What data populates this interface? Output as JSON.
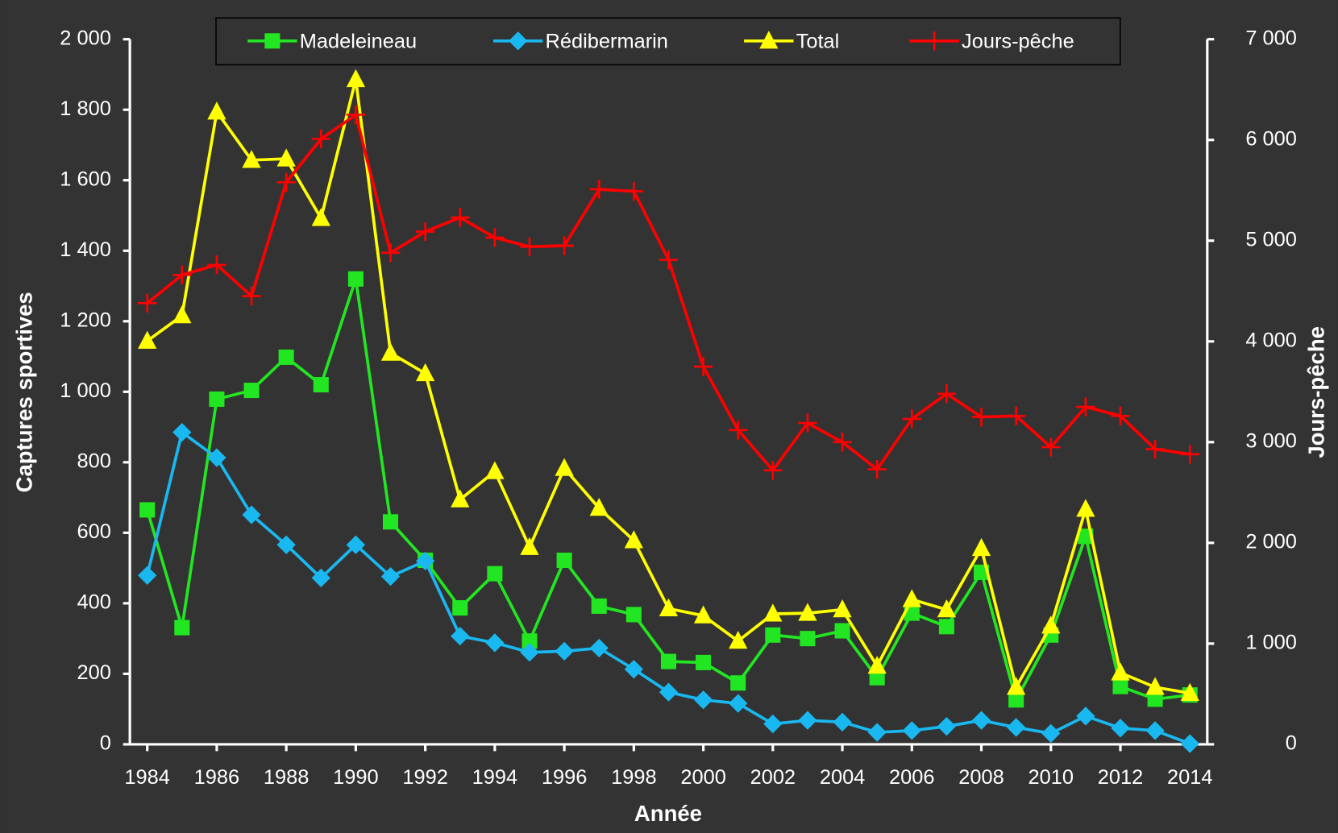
{
  "chart_data": {
    "type": "line",
    "xlabel": "Année",
    "ylabel": "Captures sportives",
    "y2label": "Jours-pêche",
    "x": [
      1984,
      1985,
      1986,
      1987,
      1988,
      1989,
      1990,
      1991,
      1992,
      1993,
      1994,
      1995,
      1996,
      1997,
      1998,
      1999,
      2000,
      2001,
      2002,
      2003,
      2004,
      2005,
      2006,
      2007,
      2008,
      2009,
      2010,
      2011,
      2012,
      2013,
      2014
    ],
    "xlim": [
      1983.5,
      2014.5
    ],
    "xticks": [
      1984,
      1986,
      1988,
      1990,
      1992,
      1994,
      1996,
      1998,
      2000,
      2002,
      2004,
      2006,
      2008,
      2010,
      2012,
      2014
    ],
    "ylim": [
      0,
      2000
    ],
    "yticks": [
      0,
      200,
      400,
      600,
      800,
      {
        "value": 1000,
        "label": "1 000"
      },
      {
        "value": 1200,
        "label": "1 200"
      },
      {
        "value": 1400,
        "label": "1 400"
      },
      {
        "value": 1600,
        "label": "1 600"
      },
      {
        "value": 1800,
        "label": "1 800"
      },
      {
        "value": 2000,
        "label": "2 000"
      }
    ],
    "y2lim": [
      0,
      7000
    ],
    "y2ticks": [
      0,
      {
        "value": 1000,
        "label": "1 000"
      },
      {
        "value": 2000,
        "label": "2 000"
      },
      {
        "value": 3000,
        "label": "3 000"
      },
      {
        "value": 4000,
        "label": "4 000"
      },
      {
        "value": 5000,
        "label": "5 000"
      },
      {
        "value": 6000,
        "label": "6 000"
      },
      {
        "value": 7000,
        "label": "7 000"
      }
    ],
    "legend": "top",
    "series": [
      {
        "name": "Madeleineau",
        "color": "#22e622",
        "marker": "square",
        "values": [
          665,
          331,
          979,
          1004,
          1098,
          1020,
          1320,
          631,
          522,
          387,
          484,
          293,
          522,
          392,
          368,
          235,
          232,
          174,
          310,
          300,
          322,
          189,
          372,
          334,
          488,
          126,
          310,
          590,
          164,
          128,
          140
        ]
      },
      {
        "name": "Rédibermarin",
        "color": "#1ab8f0",
        "marker": "diamond",
        "values": [
          479,
          885,
          813,
          651,
          566,
          472,
          566,
          476,
          520,
          307,
          288,
          261,
          264,
          273,
          213,
          148,
          126,
          116,
          58,
          68,
          63,
          34,
          39,
          51,
          68,
          48,
          31,
          80,
          46,
          39,
          2
        ]
      },
      {
        "name": "Total",
        "color": "#ffff00",
        "marker": "triangle",
        "values": [
          1144,
          1216,
          1794,
          1657,
          1661,
          1492,
          1886,
          1110,
          1052,
          694,
          774,
          559,
          783,
          670,
          578,
          385,
          365,
          293,
          370,
          372,
          382,
          222,
          411,
          382,
          556,
          162,
          336,
          667,
          203,
          162,
          145
        ]
      },
      {
        "name": "Jours-pêche",
        "color": "#ff0000",
        "marker": "plus",
        "axis": "y2",
        "values": [
          4380,
          4660,
          4760,
          4450,
          5580,
          6010,
          6250,
          4880,
          5090,
          5230,
          5030,
          4940,
          4950,
          5510,
          5490,
          4810,
          3750,
          3120,
          2720,
          3190,
          3000,
          2730,
          3230,
          3480,
          3250,
          3260,
          2950,
          3350,
          3260,
          2930,
          2880
        ]
      }
    ]
  }
}
